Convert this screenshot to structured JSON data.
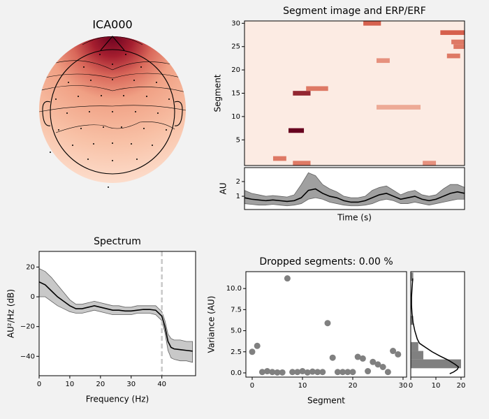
{
  "chart_data": [
    {
      "type": "topomap",
      "title": "ICA000"
    },
    {
      "type": "image",
      "title": "Segment image and ERP/ERF",
      "ylabel": "Segment",
      "ylim": [
        -0.5,
        30.5
      ],
      "yticks": [
        5,
        10,
        15,
        20,
        25,
        30
      ],
      "segments": [
        7,
        15,
        16,
        30,
        28,
        26,
        25,
        23,
        22,
        1,
        0,
        0,
        12
      ],
      "starts": [
        0.2,
        0.22,
        0.28,
        0.54,
        0.89,
        0.94,
        0.95,
        0.92,
        0.6,
        0.13,
        0.22,
        0.81,
        0.6
      ],
      "ends": [
        0.27,
        0.3,
        0.38,
        0.62,
        1.0,
        1.0,
        1.0,
        0.98,
        0.66,
        0.19,
        0.3,
        0.87,
        0.8
      ],
      "values": [
        1.0,
        0.8,
        0.4,
        0.5,
        0.5,
        0.4,
        0.4,
        0.4,
        0.3,
        0.4,
        0.4,
        0.3,
        0.2
      ]
    },
    {
      "type": "line",
      "xlabel": "Time (s)",
      "ylabel": "AU",
      "xlim": [
        0,
        31
      ],
      "ylim": [
        0.1,
        2.95
      ],
      "yticks": [
        1,
        2
      ],
      "color": "#000000",
      "band_color": "#a0a0a0",
      "values": [
        0.9,
        0.8,
        0.75,
        0.7,
        0.75,
        0.7,
        0.65,
        0.7,
        0.9,
        1.4,
        1.5,
        1.2,
        1.0,
        0.9,
        0.7,
        0.6,
        0.6,
        0.7,
        0.9,
        1.1,
        1.2,
        1.0,
        0.8,
        0.9,
        1.0,
        0.8,
        0.7,
        0.8,
        1.0,
        1.2,
        1.3,
        1.2
      ],
      "upper": [
        1.4,
        1.2,
        1.1,
        1.0,
        1.05,
        1.0,
        0.95,
        1.1,
        1.8,
        2.6,
        2.4,
        1.8,
        1.5,
        1.3,
        1.0,
        0.9,
        0.9,
        1.0,
        1.4,
        1.6,
        1.7,
        1.4,
        1.1,
        1.3,
        1.4,
        1.1,
        1.0,
        1.1,
        1.5,
        1.8,
        1.8,
        1.6
      ],
      "lower": [
        0.5,
        0.45,
        0.4,
        0.4,
        0.45,
        0.4,
        0.35,
        0.4,
        0.5,
        0.8,
        0.9,
        0.8,
        0.6,
        0.5,
        0.4,
        0.35,
        0.35,
        0.4,
        0.5,
        0.7,
        0.8,
        0.7,
        0.5,
        0.5,
        0.6,
        0.5,
        0.4,
        0.5,
        0.6,
        0.7,
        0.8,
        0.8
      ]
    },
    {
      "type": "line",
      "title": "Spectrum",
      "xlabel": "Frequency (Hz)",
      "ylabel": "AU²/Hz (dB)",
      "xlim": [
        0,
        51
      ],
      "xticks": [
        0,
        10,
        20,
        30,
        40
      ],
      "ylim": [
        -53,
        30.5
      ],
      "yticks": [
        {
          "value": -40,
          "label": "−40"
        },
        {
          "value": -20,
          "label": "−20"
        },
        0,
        20
      ],
      "color": "#000000",
      "band_color": "#c8c8c8",
      "vline": 40,
      "x": [
        0,
        2,
        4,
        6,
        8,
        10,
        12,
        14,
        16,
        18,
        20,
        22,
        24,
        26,
        28,
        30,
        32,
        34,
        36,
        38,
        40,
        41,
        42,
        43,
        44,
        46,
        48,
        50
      ],
      "values": [
        10,
        8,
        4,
        0,
        -3,
        -6,
        -8,
        -8,
        -7,
        -6,
        -7,
        -8,
        -9,
        -9,
        -9.5,
        -9.5,
        -9,
        -8.5,
        -8.5,
        -9,
        -13,
        -20,
        -30,
        -34,
        -35,
        -35.5,
        -36,
        -36.5
      ],
      "upper": [
        19,
        17,
        13,
        8,
        3,
        -2,
        -5,
        -5,
        -4,
        -3,
        -4,
        -5,
        -6,
        -6,
        -7,
        -7,
        -6,
        -6,
        -6,
        -6,
        -10,
        -16,
        -25,
        -28,
        -29,
        -29,
        -30,
        -30
      ],
      "lower": [
        0,
        0,
        -3,
        -6,
        -8,
        -10,
        -11,
        -11,
        -10,
        -9,
        -10,
        -11,
        -12,
        -12,
        -12,
        -12,
        -11,
        -11,
        -11,
        -12,
        -16,
        -24,
        -36,
        -41,
        -42,
        -43,
        -43,
        -44
      ]
    },
    {
      "type": "scatter",
      "title": "Dropped segments: 0.00 %",
      "xlabel": "Segment",
      "ylabel": "Variance (AU)",
      "xlim": [
        -1.25,
        30.7
      ],
      "xticks": [
        0,
        10,
        20,
        30
      ],
      "ylim": [
        -0.5,
        12
      ],
      "yticks": [
        {
          "value": 0,
          "label": "0.0"
        },
        2.5,
        {
          "value": 5,
          "label": "5.0"
        },
        7.5,
        {
          "value": 10,
          "label": "10.0"
        }
      ],
      "color": "#808080",
      "x": [
        0,
        1,
        2,
        3,
        4,
        5,
        6,
        7,
        8,
        9,
        10,
        11,
        12,
        13,
        14,
        15,
        16,
        17,
        18,
        19,
        20,
        21,
        22,
        23,
        24,
        25,
        26,
        27,
        28,
        29
      ],
      "values": [
        2.5,
        3.2,
        0.1,
        0.2,
        0.1,
        0.05,
        0.05,
        11.2,
        0.1,
        0.1,
        0.2,
        0.05,
        0.15,
        0.1,
        0.1,
        5.9,
        1.8,
        0.1,
        0.1,
        0.1,
        0.1,
        1.9,
        1.7,
        0.2,
        1.3,
        1.0,
        0.7,
        0.1,
        2.6,
        2.2
      ]
    },
    {
      "type": "histogram",
      "orientation": "horizontal",
      "xlim": [
        0,
        21.4
      ],
      "xticks": [
        0,
        10,
        20
      ],
      "ylim": [
        -0.5,
        12
      ],
      "color": "#808080",
      "bins": [
        0.55,
        1.6,
        2.6,
        3.65,
        4.7,
        5.7,
        6.75,
        7.8,
        8.8,
        9.85,
        10.9,
        11.9
      ],
      "counts": [
        20,
        5,
        3,
        0,
        0,
        1,
        0,
        0,
        0,
        0,
        1
      ],
      "kde_counts": [
        0.8,
        0.5,
        0.3,
        0.3,
        0.5,
        0.9,
        1.6,
        2.6,
        3.5,
        6,
        8.5,
        11.6,
        15,
        17.7,
        19,
        18.5,
        17,
        15.5
      ],
      "kde_variance": [
        11.2,
        10,
        9,
        8,
        7,
        6,
        5,
        4,
        3.5,
        3,
        2.5,
        2,
        1.5,
        1,
        0.7,
        0.4,
        0.1,
        -0.1
      ]
    }
  ]
}
